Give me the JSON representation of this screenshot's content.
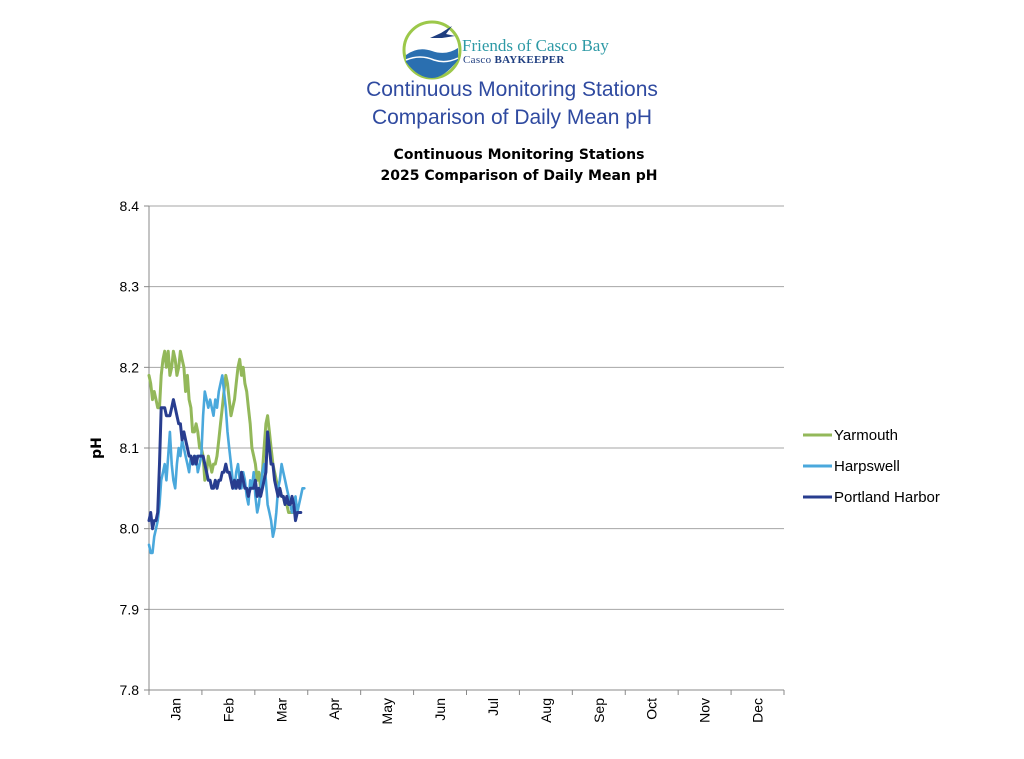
{
  "header": {
    "logo_name": "Friends of Casco Bay",
    "logo_sub_a": "Casco ",
    "logo_sub_b": "BAYKEEPER",
    "title_line1": "Continuous Monitoring Stations",
    "title_line2": "Comparison of Daily Mean pH"
  },
  "colors": {
    "yarmouth": "#93b85a",
    "harpswell": "#4aa8dc",
    "portland": "#283d8f",
    "grid": "#a6a6a6",
    "axis": "#888888"
  },
  "chart_data": {
    "type": "line",
    "title_line1": "Continuous Monitoring Stations",
    "title_line2": "2025 Comparison of Daily Mean pH",
    "xlabel": "",
    "ylabel": "pH",
    "ylim": [
      7.8,
      8.4
    ],
    "yticks": [
      "7.8",
      "7.9",
      "8.0",
      "8.1",
      "8.2",
      "8.3",
      "8.4"
    ],
    "xlim_days": [
      1,
      365
    ],
    "x_tick_labels": [
      "Jan",
      "Feb",
      "Mar",
      "Apr",
      "May",
      "Jun",
      "Jul",
      "Aug",
      "Sep",
      "Oct",
      "Nov",
      "Dec"
    ],
    "grid": "horizontal",
    "legend_position": "right",
    "series": [
      {
        "name": "Yarmouth",
        "x": [
          1,
          2,
          3,
          4,
          5,
          6,
          7,
          8,
          9,
          10,
          11,
          12,
          13,
          14,
          15,
          16,
          17,
          18,
          19,
          20,
          21,
          22,
          23,
          24,
          25,
          26,
          27,
          28,
          29,
          30,
          31,
          32,
          33,
          34,
          35,
          36,
          37,
          38,
          39,
          40,
          41,
          42,
          43,
          44,
          45,
          46,
          47,
          48,
          49,
          50,
          51,
          52,
          53,
          54,
          55,
          56,
          57,
          58,
          59,
          60,
          61,
          62,
          63,
          64,
          65,
          66,
          67,
          68,
          69,
          70,
          71,
          72,
          73,
          74,
          75,
          76,
          77,
          78,
          79,
          80,
          81,
          82,
          83,
          84
        ],
        "y": [
          8.19,
          8.18,
          8.16,
          8.17,
          8.16,
          8.15,
          8.15,
          8.19,
          8.21,
          8.22,
          8.2,
          8.22,
          8.19,
          8.2,
          8.22,
          8.21,
          8.19,
          8.2,
          8.22,
          8.21,
          8.2,
          8.17,
          8.19,
          8.16,
          8.15,
          8.12,
          8.12,
          8.13,
          8.12,
          8.1,
          8.1,
          8.09,
          8.06,
          8.07,
          8.09,
          8.08,
          8.07,
          8.08,
          8.08,
          8.09,
          8.11,
          8.13,
          8.15,
          8.17,
          8.19,
          8.18,
          8.16,
          8.14,
          8.15,
          8.16,
          8.18,
          8.2,
          8.21,
          8.19,
          8.2,
          8.18,
          8.17,
          8.15,
          8.13,
          8.1,
          8.09,
          8.08,
          8.06,
          8.07,
          8.05,
          8.07,
          8.1,
          8.13,
          8.14,
          8.12,
          8.1,
          8.08,
          8.07,
          8.06,
          8.05,
          8.05,
          8.04,
          8.04,
          8.03,
          8.03,
          8.02,
          8.02,
          8.02,
          8.02
        ]
      },
      {
        "name": "Harpswell",
        "x": [
          1,
          2,
          3,
          4,
          5,
          6,
          7,
          8,
          9,
          10,
          11,
          12,
          13,
          14,
          15,
          16,
          17,
          18,
          19,
          20,
          21,
          22,
          23,
          24,
          25,
          26,
          27,
          28,
          29,
          30,
          31,
          32,
          33,
          34,
          35,
          36,
          37,
          38,
          39,
          40,
          41,
          42,
          43,
          44,
          45,
          46,
          47,
          48,
          49,
          50,
          51,
          52,
          53,
          54,
          55,
          56,
          57,
          58,
          59,
          60,
          61,
          62,
          63,
          64,
          65,
          66,
          67,
          68,
          69,
          70,
          71,
          72,
          73,
          74,
          75,
          76,
          77,
          78,
          79,
          80,
          81,
          82,
          83,
          84,
          85,
          86,
          87,
          88,
          89,
          90
        ],
        "y": [
          7.98,
          7.97,
          7.97,
          7.99,
          8.0,
          8.01,
          8.03,
          8.06,
          8.07,
          8.08,
          8.06,
          8.09,
          8.12,
          8.08,
          8.06,
          8.05,
          8.08,
          8.1,
          8.09,
          8.11,
          8.1,
          8.09,
          8.08,
          8.07,
          8.09,
          8.08,
          8.08,
          8.09,
          8.07,
          8.08,
          8.09,
          8.14,
          8.17,
          8.16,
          8.15,
          8.16,
          8.15,
          8.14,
          8.16,
          8.15,
          8.17,
          8.18,
          8.19,
          8.17,
          8.15,
          8.12,
          8.1,
          8.08,
          8.06,
          8.05,
          8.07,
          8.08,
          8.06,
          8.05,
          8.07,
          8.06,
          8.04,
          8.03,
          8.06,
          8.05,
          8.07,
          8.04,
          8.02,
          8.03,
          8.05,
          8.07,
          8.08,
          8.06,
          8.03,
          8.02,
          8.01,
          7.99,
          8.0,
          8.02,
          8.05,
          8.06,
          8.08,
          8.07,
          8.06,
          8.05,
          8.04,
          8.03,
          8.02,
          8.03,
          8.04,
          8.02,
          8.03,
          8.04,
          8.05,
          8.05
        ]
      },
      {
        "name": "Portland Harbor",
        "x": [
          1,
          2,
          3,
          4,
          5,
          6,
          7,
          8,
          9,
          10,
          11,
          12,
          13,
          14,
          15,
          16,
          17,
          18,
          19,
          20,
          21,
          22,
          23,
          24,
          25,
          26,
          27,
          28,
          29,
          30,
          31,
          32,
          33,
          34,
          35,
          36,
          37,
          38,
          39,
          40,
          41,
          42,
          43,
          44,
          45,
          46,
          47,
          48,
          49,
          50,
          51,
          52,
          53,
          54,
          55,
          56,
          57,
          58,
          59,
          60,
          61,
          62,
          63,
          64,
          65,
          66,
          67,
          68,
          69,
          70,
          71,
          72,
          73,
          74,
          75,
          76,
          77,
          78,
          79,
          80,
          81,
          82,
          83,
          84,
          85,
          86,
          87,
          88
        ],
        "y": [
          8.01,
          8.02,
          8.0,
          8.01,
          8.01,
          8.02,
          8.08,
          8.15,
          8.15,
          8.15,
          8.14,
          8.14,
          8.14,
          8.15,
          8.16,
          8.15,
          8.14,
          8.13,
          8.13,
          8.11,
          8.12,
          8.11,
          8.1,
          8.09,
          8.09,
          8.08,
          8.09,
          8.08,
          8.09,
          8.09,
          8.09,
          8.09,
          8.08,
          8.07,
          8.06,
          8.06,
          8.05,
          8.05,
          8.06,
          8.05,
          8.06,
          8.06,
          8.07,
          8.07,
          8.08,
          8.07,
          8.07,
          8.06,
          8.05,
          8.06,
          8.05,
          8.06,
          8.05,
          8.07,
          8.06,
          8.05,
          8.05,
          8.04,
          8.05,
          8.05,
          8.05,
          8.06,
          8.04,
          8.05,
          8.04,
          8.05,
          8.06,
          8.07,
          8.12,
          8.1,
          8.08,
          8.08,
          8.06,
          8.05,
          8.04,
          8.05,
          8.04,
          8.04,
          8.03,
          8.04,
          8.03,
          8.03,
          8.04,
          8.03,
          8.01,
          8.02,
          8.02,
          8.02
        ]
      }
    ]
  }
}
